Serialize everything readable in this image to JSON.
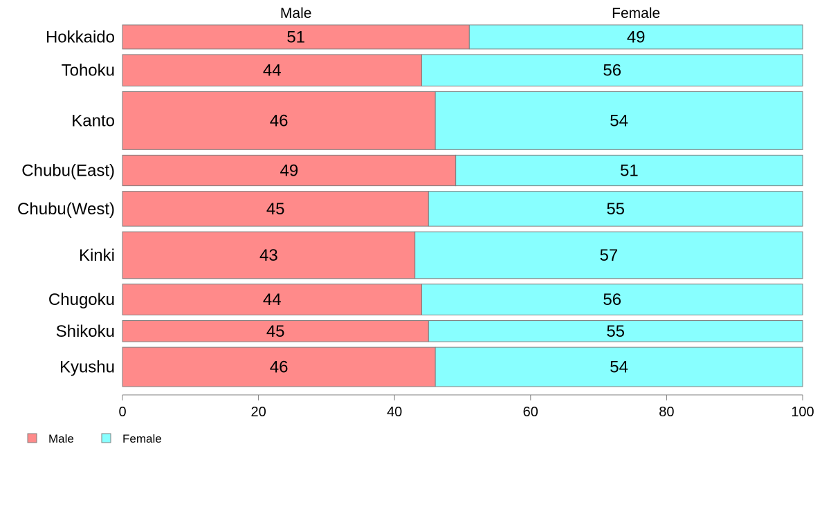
{
  "chart_data": {
    "type": "bar",
    "orientation": "horizontal",
    "stacked": true,
    "categories": [
      "Hokkaido",
      "Tohoku",
      "Kanto",
      "Chubu(East)",
      "Chubu(West)",
      "Kinki",
      "Chugoku",
      "Shikoku",
      "Kyushu"
    ],
    "series": [
      {
        "name": "Male",
        "values": [
          51,
          44,
          46,
          49,
          45,
          43,
          44,
          45,
          46
        ],
        "color": "#FF8A8A"
      },
      {
        "name": "Female",
        "values": [
          49,
          56,
          54,
          51,
          55,
          57,
          56,
          55,
          54
        ],
        "color": "#88FFFF"
      }
    ],
    "group_weights": [
      0.0371,
      0.0484,
      0.0893,
      0.0471,
      0.0537,
      0.072,
      0.0475,
      0.0326,
      0.0605
    ],
    "column_headers": [
      "Male",
      "Female"
    ],
    "xlim": [
      0,
      100
    ],
    "xticks": [
      "0",
      "20",
      "40",
      "60",
      "80",
      "100"
    ],
    "legend": {
      "position": "bottom-left",
      "entries": [
        "Male",
        "Female"
      ]
    },
    "grid": false
  }
}
